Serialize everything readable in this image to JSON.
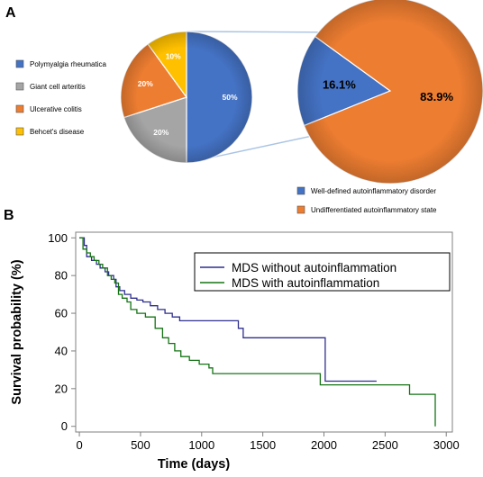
{
  "panels": {
    "a_label": "A",
    "b_label": "B"
  },
  "colors": {
    "blue": "#4472c4",
    "gray": "#a5a5a5",
    "orange": "#ed7d31",
    "yellow": "#ffc000",
    "connector": "#aac4e4",
    "navy": "#2e2e8e",
    "green": "#157315"
  },
  "chart_data": [
    {
      "type": "pie",
      "panel": "A",
      "legend_position": "left",
      "slices": [
        {
          "name": "Polymyalgia rheumatica",
          "value": 50,
          "label": "50%",
          "color": "#4472c4"
        },
        {
          "name": "Giant cell arteritis",
          "value": 20,
          "label": "20%",
          "color": "#a5a5a5"
        },
        {
          "name": "Ulcerative colitis",
          "value": 20,
          "label": "20%",
          "color": "#ed7d31"
        },
        {
          "name": "Behcet's disease",
          "value": 10,
          "label": "10%",
          "color": "#ffc000"
        }
      ]
    },
    {
      "type": "pie",
      "panel": "A",
      "legend_position": "bottom",
      "slices": [
        {
          "name": "Well-defined autoinflammatory disorder",
          "value": 16.1,
          "label": "16.1%",
          "color": "#4472c4"
        },
        {
          "name": "Undifferentiated autoinflammatory state",
          "value": 83.9,
          "label": "83.9%",
          "color": "#ed7d31"
        }
      ]
    },
    {
      "type": "line",
      "panel": "B",
      "step": true,
      "xlabel": "Time (days)",
      "ylabel": "Survival probability (%)",
      "xlim": [
        -30,
        3050
      ],
      "ylim": [
        -3,
        103
      ],
      "xticks": [
        0,
        500,
        1000,
        1500,
        2000,
        2500,
        3000
      ],
      "yticks": [
        0,
        20,
        40,
        60,
        80,
        100
      ],
      "legend_position": "top-right",
      "series": [
        {
          "name": "MDS without autoinflammation",
          "color": "#2e2e8e",
          "points": [
            [
              0,
              100
            ],
            [
              40,
              96
            ],
            [
              60,
              90
            ],
            [
              100,
              88
            ],
            [
              140,
              86
            ],
            [
              170,
              84
            ],
            [
              210,
              82
            ],
            [
              240,
              80
            ],
            [
              280,
              78
            ],
            [
              300,
              74
            ],
            [
              330,
              72
            ],
            [
              370,
              70
            ],
            [
              420,
              68
            ],
            [
              470,
              67
            ],
            [
              520,
              66
            ],
            [
              580,
              64
            ],
            [
              640,
              62
            ],
            [
              700,
              60
            ],
            [
              760,
              58
            ],
            [
              820,
              56
            ],
            [
              1300,
              56
            ],
            [
              1300,
              52
            ],
            [
              1340,
              52
            ],
            [
              1340,
              47
            ],
            [
              2010,
              47
            ],
            [
              2010,
              24
            ],
            [
              2430,
              24
            ]
          ]
        },
        {
          "name": "MDS with autoinflammation",
          "color": "#157315",
          "points": [
            [
              0,
              100
            ],
            [
              30,
              94
            ],
            [
              60,
              92
            ],
            [
              90,
              90
            ],
            [
              120,
              88
            ],
            [
              160,
              86
            ],
            [
              190,
              84
            ],
            [
              230,
              80
            ],
            [
              260,
              78
            ],
            [
              290,
              76
            ],
            [
              320,
              70
            ],
            [
              350,
              68
            ],
            [
              390,
              66
            ],
            [
              420,
              62
            ],
            [
              470,
              60
            ],
            [
              540,
              58
            ],
            [
              620,
              52
            ],
            [
              680,
              47
            ],
            [
              730,
              44
            ],
            [
              780,
              40
            ],
            [
              830,
              37
            ],
            [
              900,
              35
            ],
            [
              980,
              33
            ],
            [
              1060,
              31
            ],
            [
              1090,
              28
            ],
            [
              1970,
              28
            ],
            [
              1970,
              22
            ],
            [
              2700,
              22
            ],
            [
              2700,
              17
            ],
            [
              2910,
              17
            ],
            [
              2910,
              0
            ]
          ]
        }
      ]
    }
  ]
}
